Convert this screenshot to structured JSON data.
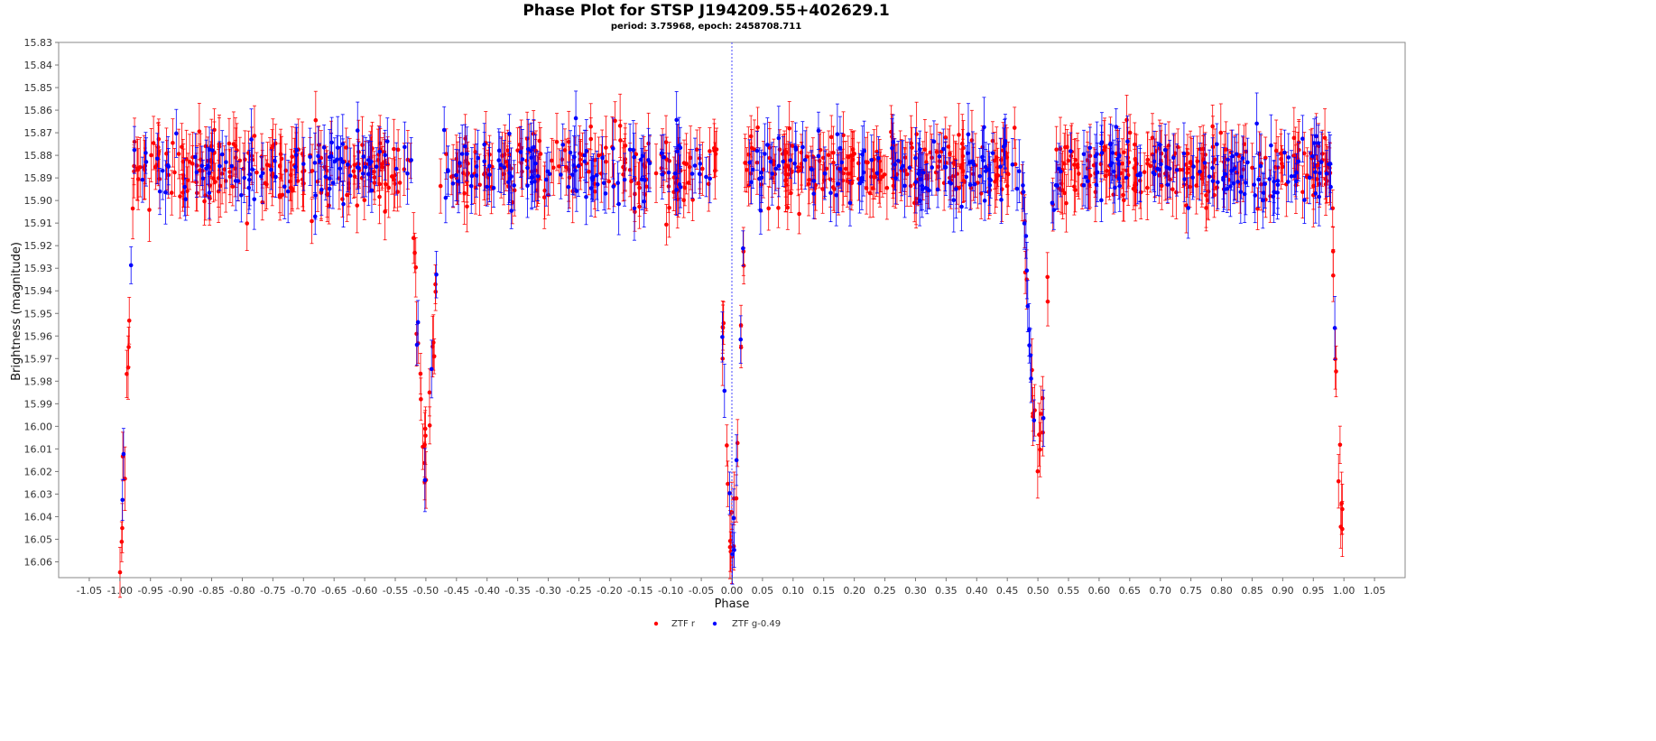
{
  "chart_data": {
    "type": "scatter",
    "title": "Phase Plot for STSP J194209.55+402629.1",
    "subtitle": "period: 3.75968, epoch: 2458708.711",
    "xlabel": "Phase",
    "ylabel": "Brightness (magnitude)",
    "xlim": [
      -1.1,
      1.1
    ],
    "ylim": [
      15.83,
      16.067
    ],
    "y_inverted": true,
    "x_ticks": [
      "-1.05",
      "-1.00",
      "-0.95",
      "-0.90",
      "-0.85",
      "-0.80",
      "-0.75",
      "-0.70",
      "-0.65",
      "-0.60",
      "-0.55",
      "-0.50",
      "-0.45",
      "-0.40",
      "-0.35",
      "-0.30",
      "-0.25",
      "-0.20",
      "-0.15",
      "-0.10",
      "-0.05",
      "0.00",
      "0.05",
      "0.10",
      "0.15",
      "0.20",
      "0.25",
      "0.30",
      "0.35",
      "0.40",
      "0.45",
      "0.50",
      "0.55",
      "0.60",
      "0.65",
      "0.70",
      "0.75",
      "0.80",
      "0.85",
      "0.90",
      "0.95",
      "1.00",
      "1.05"
    ],
    "y_ticks": [
      "15.83",
      "15.84",
      "15.85",
      "15.86",
      "15.87",
      "15.88",
      "15.89",
      "15.90",
      "15.91",
      "15.92",
      "15.93",
      "15.94",
      "15.95",
      "15.96",
      "15.97",
      "15.98",
      "15.99",
      "16.00",
      "16.01",
      "16.02",
      "16.03",
      "16.04",
      "16.05",
      "16.06"
    ],
    "reference_line_x": 0.0,
    "grid": false,
    "legend_position": "bottom-center",
    "series": [
      {
        "name": "ZTF r",
        "color": "#ff0000"
      },
      {
        "name": "ZTF g-0.49",
        "color": "#0000ff"
      }
    ],
    "light_curve_model": {
      "baseline": 15.886,
      "scatter": 0.013,
      "error_bar_half": 0.011,
      "primary_eclipse": {
        "phase": 0.0,
        "depth": 0.17,
        "half_width": 0.022
      },
      "secondary_eclipse": {
        "phase": 0.5,
        "depth": 0.13,
        "half_width": 0.025
      },
      "secondary_eclipse_centers": [
        -0.5,
        0.5
      ]
    }
  }
}
